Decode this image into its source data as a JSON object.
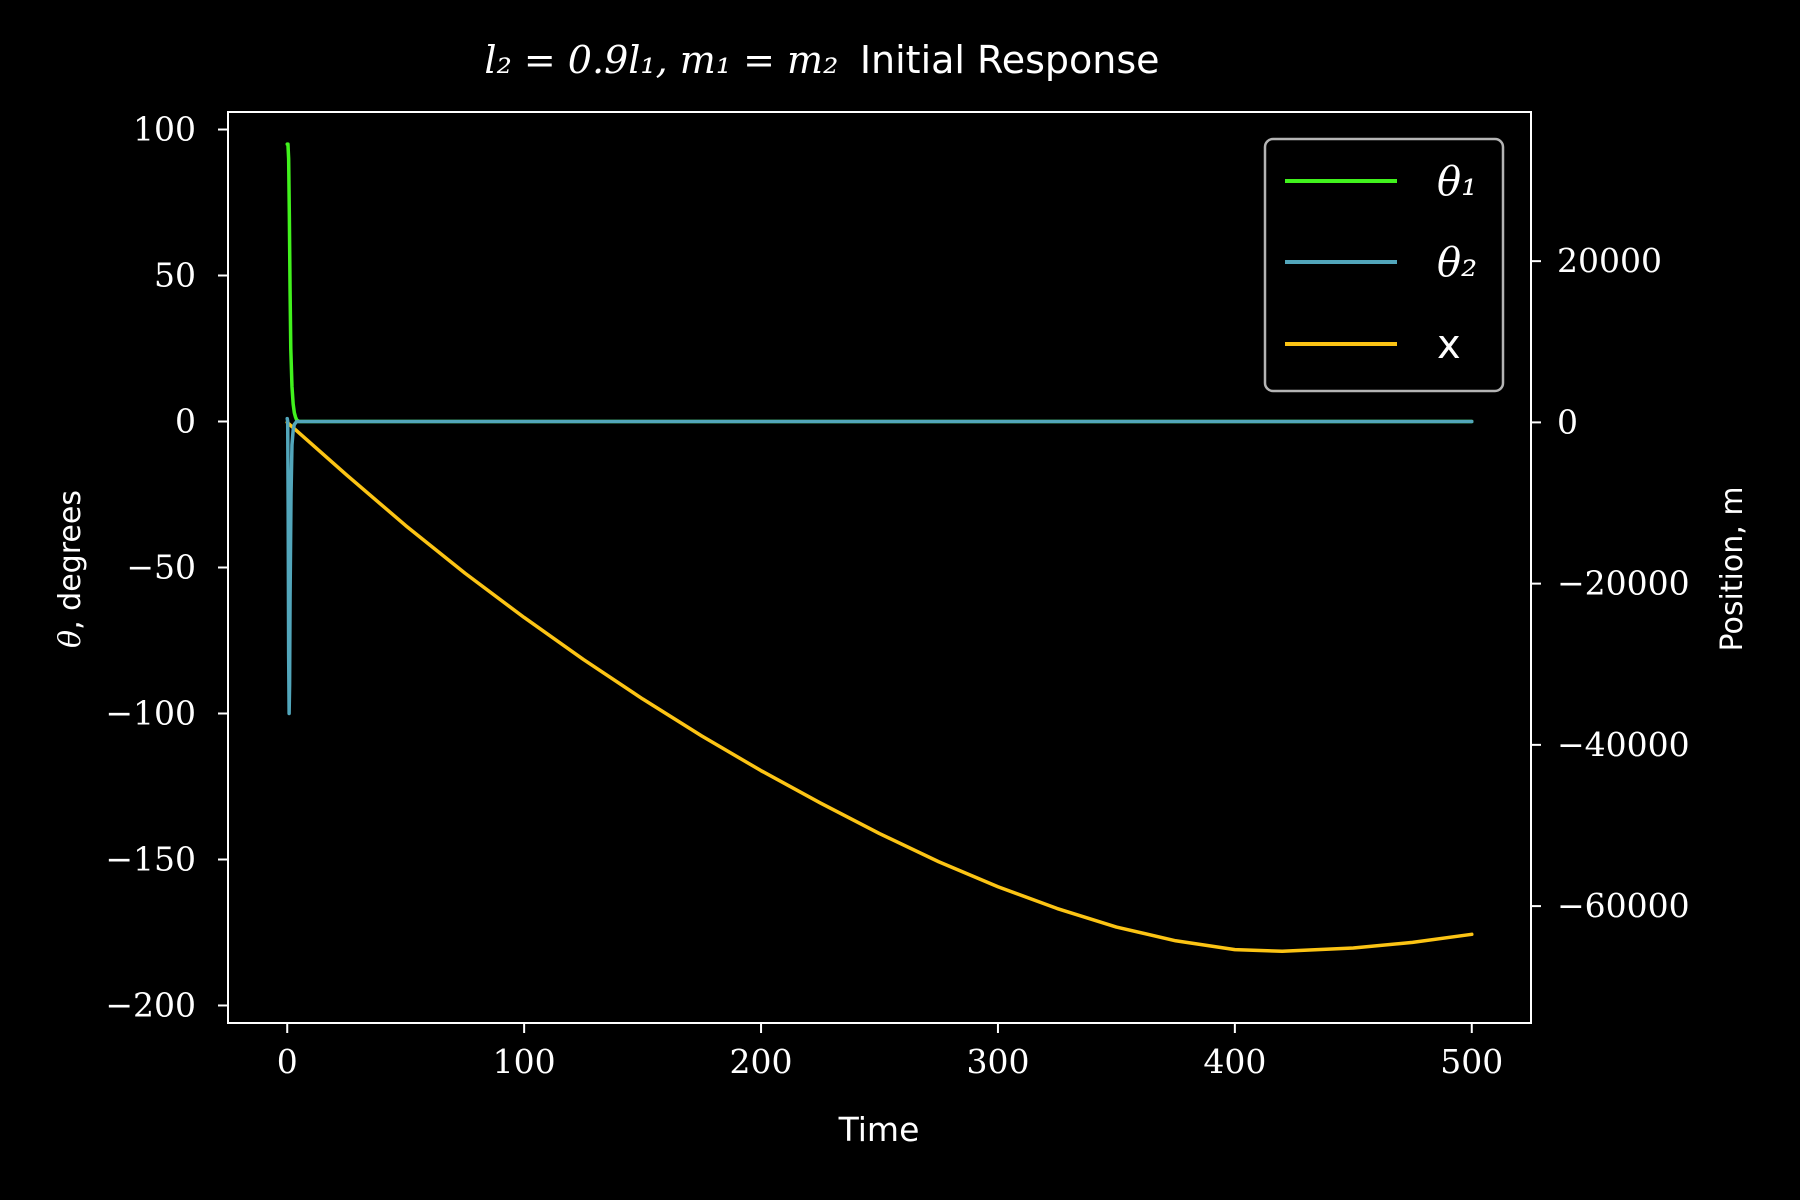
{
  "chart_data": {
    "type": "line",
    "title": {
      "math": "l₂ = 0.9l₁, m₁ = m₂",
      "text": "Initial Response"
    },
    "xlabel": "Time",
    "ylabel_left": {
      "symbol": "θ",
      "text": ", degrees"
    },
    "ylabel_right": "Position, m",
    "xlim": [
      -25,
      525
    ],
    "ylim_left": [
      -206,
      106
    ],
    "ylim_right": [
      -74500,
      38500
    ],
    "xticks": [
      0,
      100,
      200,
      300,
      400,
      500
    ],
    "yticks_left": [
      100,
      50,
      0,
      -50,
      -100,
      -150,
      -200
    ],
    "yticks_right": [
      20000,
      0,
      -20000,
      -40000,
      -60000
    ],
    "grid": false,
    "legend_position": "top-right",
    "series": [
      {
        "name": "θ₁",
        "axis": "left",
        "color": "#41f21d",
        "x": [
          0,
          0.3,
          0.6,
          0.9,
          1.2,
          1.5,
          2,
          2.5,
          3,
          3.5,
          4,
          5,
          6,
          8,
          10,
          20,
          50,
          100,
          200,
          300,
          400,
          500
        ],
        "y": [
          95,
          95,
          90,
          70,
          45,
          25,
          12,
          6,
          3,
          1.5,
          0.5,
          0,
          0,
          0,
          0,
          0,
          0,
          0,
          0,
          0,
          0,
          0
        ]
      },
      {
        "name": "θ₂",
        "axis": "left",
        "color": "#52a6bb",
        "x": [
          0,
          0.2,
          0.4,
          0.6,
          0.8,
          1.0,
          1.2,
          1.6,
          2,
          2.5,
          3,
          4,
          5,
          6,
          8,
          10,
          20,
          50,
          100,
          200,
          300,
          400,
          500
        ],
        "y": [
          1,
          0,
          -30,
          -80,
          -100,
          -90,
          -60,
          -25,
          -8,
          -3,
          -1,
          0,
          0,
          0,
          0,
          0,
          0,
          0,
          0,
          0,
          0,
          0,
          0
        ]
      },
      {
        "name": "x",
        "axis": "right",
        "color": "#fcc414",
        "x": [
          0,
          25,
          50,
          75,
          100,
          125,
          150,
          175,
          200,
          225,
          250,
          275,
          300,
          325,
          350,
          375,
          400,
          420,
          450,
          475,
          500
        ],
        "y": [
          0,
          -6500,
          -12800,
          -18700,
          -24200,
          -29400,
          -34300,
          -38900,
          -43200,
          -47200,
          -51000,
          -54500,
          -57600,
          -60300,
          -62600,
          -64300,
          -65400,
          -65600,
          -65200,
          -64500,
          -63500
        ]
      }
    ]
  }
}
